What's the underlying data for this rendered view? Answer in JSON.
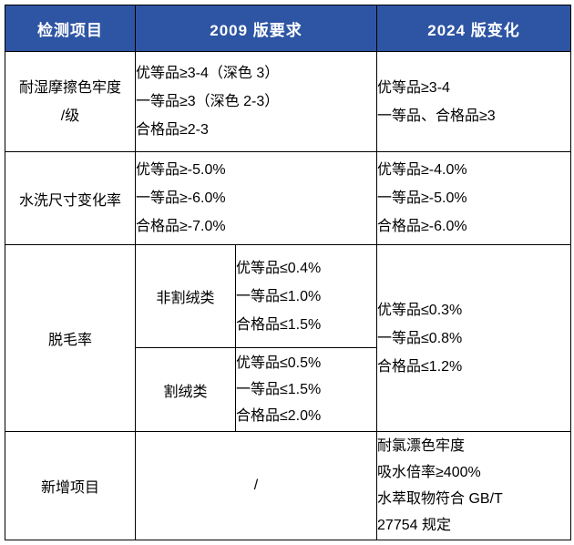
{
  "colors": {
    "page_bg": "#FFFFFF",
    "header_bg": "#2E55A3",
    "header_text": "#FFFFFF",
    "border": "#000000",
    "body_text": "#000000"
  },
  "table": {
    "header": {
      "col_item": "检测项目",
      "col_2009": "2009 版要求",
      "col_2024": "2024 版变化"
    },
    "rows": [
      {
        "item_lines": [
          "耐湿摩擦色牢度",
          "/级"
        ],
        "req_2009": [
          "优等品≥3-4（深色 3）",
          "一等品≥3（深色 2-3）",
          "合格品≥2-3"
        ],
        "change_2024": [
          "优等品≥3-4",
          "一等品、合格品≥3"
        ]
      },
      {
        "item": "水洗尺寸变化率",
        "req_2009": [
          "优等品≥-5.0%",
          "一等品≥-6.0%",
          "合格品≥-7.0%"
        ],
        "change_2024": [
          "优等品≥-4.0%",
          "一等品≥-5.0%",
          "合格品≥-6.0%"
        ]
      },
      {
        "item": "脱毛率",
        "sub_rows": [
          {
            "category": "非割绒类",
            "req_2009": [
              "优等品≤0.4%",
              "一等品≤1.0%",
              "合格品≤1.5%"
            ]
          },
          {
            "category": "割绒类",
            "req_2009": [
              "优等品≤0.5%",
              "一等品≤1.5%",
              "合格品≤2.0%"
            ]
          }
        ],
        "change_2024": [
          "优等品≤0.3%",
          "一等品≤0.8%",
          "合格品≤1.2%"
        ]
      },
      {
        "item": "新增项目",
        "req_2009": "/",
        "change_2024": [
          "耐氯漂色牢度",
          "吸水倍率≥400%",
          "水萃取物符合 GB/T",
          "27754 规定"
        ]
      }
    ]
  }
}
